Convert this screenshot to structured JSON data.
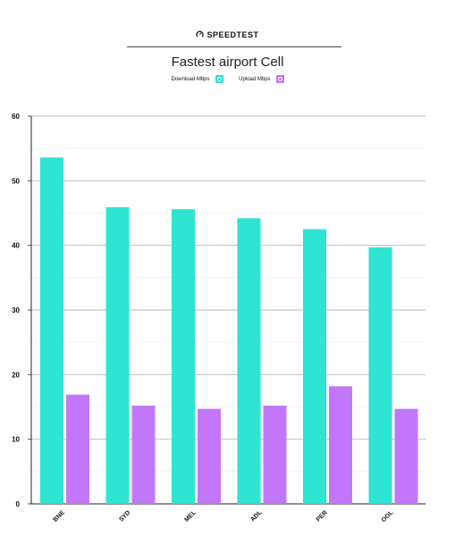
{
  "header": {
    "brand": "SPEEDTEST",
    "title": "Fastest airport Cell"
  },
  "legend": {
    "items": [
      {
        "label": "Download Mbps",
        "color": "#2ee5d1",
        "icon": "download-circle-icon"
      },
      {
        "label": "Upload Mbps",
        "color": "#c277fb",
        "icon": "upload-circle-icon"
      }
    ],
    "placement": "top-center"
  },
  "chart_data": {
    "type": "bar",
    "title": "Fastest airport Cell",
    "categories": [
      "BNE",
      "SYD",
      "MEL",
      "ADL",
      "PER",
      "OOL"
    ],
    "series": [
      {
        "name": "Download Mbps",
        "color": "#2ee5d1",
        "values": [
          53.6,
          45.9,
          45.6,
          44.2,
          42.5,
          39.7
        ]
      },
      {
        "name": "Upload Mbps",
        "color": "#c277fb",
        "values": [
          16.9,
          15.2,
          14.7,
          15.2,
          18.2,
          14.7
        ]
      }
    ],
    "ylim": [
      0,
      60
    ],
    "yticks": [
      "0",
      "10",
      "20",
      "30",
      "40",
      "50",
      "60"
    ],
    "ytick_values": [
      0,
      10,
      20,
      30,
      40,
      50,
      60
    ],
    "grid": true,
    "xlabel": "",
    "ylabel": ""
  }
}
